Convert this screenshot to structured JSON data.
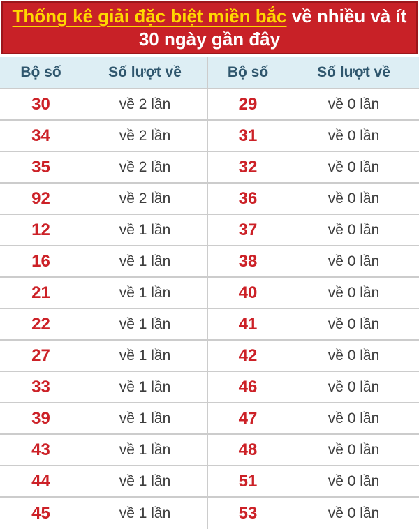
{
  "banner": {
    "highlight": "Thống kê giải đặc biệt miền bắc",
    "rest": " về nhiều và ít 30 ngày gần đây"
  },
  "table": {
    "headers": [
      "Bộ số",
      "Số lượt về",
      "Bộ số",
      "Số lượt về"
    ],
    "rows": [
      [
        "30",
        "về 2 lần",
        "29",
        "về 0 lần"
      ],
      [
        "34",
        "về 2 lần",
        "31",
        "về 0 lần"
      ],
      [
        "35",
        "về 2 lần",
        "32",
        "về 0 lần"
      ],
      [
        "92",
        "về 2 lần",
        "36",
        "về 0 lần"
      ],
      [
        "12",
        "về 1 lần",
        "37",
        "về 0 lần"
      ],
      [
        "16",
        "về 1 lần",
        "38",
        "về 0 lần"
      ],
      [
        "21",
        "về 1 lần",
        "40",
        "về 0 lần"
      ],
      [
        "22",
        "về 1 lần",
        "41",
        "về 0 lần"
      ],
      [
        "27",
        "về 1 lần",
        "42",
        "về 0 lần"
      ],
      [
        "33",
        "về 1 lần",
        "46",
        "về 0 lần"
      ],
      [
        "39",
        "về 1 lần",
        "47",
        "về 0 lần"
      ],
      [
        "43",
        "về 1 lần",
        "48",
        "về 0 lần"
      ],
      [
        "44",
        "về 1 lần",
        "51",
        "về 0 lần"
      ],
      [
        "45",
        "về 1 lần",
        "53",
        "về 0 lần"
      ]
    ]
  },
  "colors": {
    "banner_bg": "#c82127",
    "banner_border": "#9c161b",
    "banner_highlight": "#ffd800",
    "banner_text": "#ffffff",
    "header_bg": "#ddeef4",
    "header_text": "#2f566d",
    "number_red": "#cc2127",
    "cell_text": "#3d3d3d",
    "row_border": "#cccccc",
    "page_bg": "#ffffff"
  }
}
